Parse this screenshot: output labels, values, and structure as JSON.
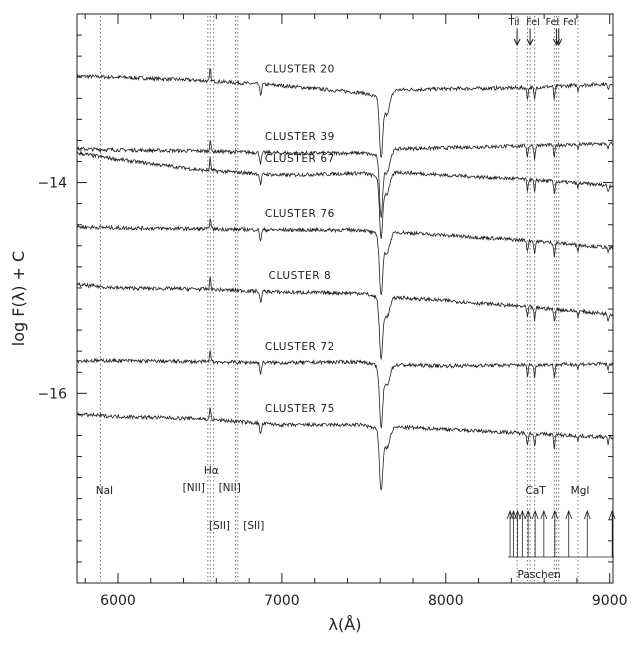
{
  "chart_data": {
    "type": "line",
    "xlabel": "λ(Å)",
    "ylabel": "log F(λ) + C",
    "xlim": [
      5750,
      9020
    ],
    "ylim": [
      -17.8,
      -12.4
    ],
    "xticks": [
      6000,
      7000,
      8000,
      9000
    ],
    "xtick_labels": [
      "6000",
      "7000",
      "8000",
      "9000"
    ],
    "yticks": [
      -14,
      -16
    ],
    "ytick_labels": [
      "−14",
      "−16"
    ],
    "grid": false,
    "legend": "none",
    "line_color": "#222222",
    "marker_line_color": "#777777",
    "series": [
      {
        "name": "CLUSTER 20",
        "points": [
          [
            5750,
            -12.99
          ],
          [
            6000,
            -13.0
          ],
          [
            6500,
            -13.03
          ],
          [
            7000,
            -13.08
          ],
          [
            7500,
            -13.15
          ],
          [
            7600,
            -13.2
          ],
          [
            7700,
            -13.12
          ],
          [
            8000,
            -13.11
          ],
          [
            8500,
            -13.1
          ],
          [
            9020,
            -13.06
          ]
        ]
      },
      {
        "name": "CLUSTER 39",
        "points": [
          [
            5750,
            -13.68
          ],
          [
            6000,
            -13.69
          ],
          [
            6500,
            -13.7
          ],
          [
            7000,
            -13.72
          ],
          [
            7500,
            -13.72
          ],
          [
            7600,
            -13.75
          ],
          [
            7700,
            -13.68
          ],
          [
            8000,
            -13.67
          ],
          [
            8500,
            -13.65
          ],
          [
            9020,
            -13.63
          ]
        ]
      },
      {
        "name": "CLUSTER 67",
        "points": [
          [
            5750,
            -13.72
          ],
          [
            6000,
            -13.78
          ],
          [
            6500,
            -13.88
          ],
          [
            7000,
            -13.93
          ],
          [
            7500,
            -13.91
          ],
          [
            7600,
            -13.95
          ],
          [
            7700,
            -13.9
          ],
          [
            8000,
            -13.93
          ],
          [
            8500,
            -13.97
          ],
          [
            9020,
            -14.03
          ]
        ]
      },
      {
        "name": "CLUSTER 76",
        "points": [
          [
            5750,
            -14.42
          ],
          [
            6000,
            -14.43
          ],
          [
            6500,
            -14.44
          ],
          [
            7000,
            -14.45
          ],
          [
            7500,
            -14.45
          ],
          [
            7600,
            -14.5
          ],
          [
            7700,
            -14.47
          ],
          [
            8000,
            -14.5
          ],
          [
            8500,
            -14.55
          ],
          [
            9020,
            -14.62
          ]
        ]
      },
      {
        "name": "CLUSTER 8",
        "points": [
          [
            5750,
            -14.97
          ],
          [
            6000,
            -15.0
          ],
          [
            6500,
            -15.01
          ],
          [
            7000,
            -15.04
          ],
          [
            7500,
            -15.05
          ],
          [
            7600,
            -15.1
          ],
          [
            7700,
            -15.09
          ],
          [
            8000,
            -15.12
          ],
          [
            8500,
            -15.18
          ],
          [
            9020,
            -15.25
          ]
        ]
      },
      {
        "name": "CLUSTER 72",
        "points": [
          [
            5750,
            -15.69
          ],
          [
            6000,
            -15.69
          ],
          [
            6500,
            -15.7
          ],
          [
            7000,
            -15.71
          ],
          [
            7500,
            -15.7
          ],
          [
            7600,
            -15.75
          ],
          [
            7700,
            -15.73
          ],
          [
            8000,
            -15.74
          ],
          [
            8500,
            -15.73
          ],
          [
            9020,
            -15.72
          ]
        ]
      },
      {
        "name": "CLUSTER 75",
        "points": [
          [
            5750,
            -16.2
          ],
          [
            6000,
            -16.22
          ],
          [
            6500,
            -16.24
          ],
          [
            7000,
            -16.3
          ],
          [
            7500,
            -16.3
          ],
          [
            7600,
            -16.35
          ],
          [
            7700,
            -16.32
          ],
          [
            8000,
            -16.34
          ],
          [
            8500,
            -16.38
          ],
          [
            9020,
            -16.42
          ]
        ]
      }
    ],
    "line_markers": [
      {
        "label": "NaI",
        "x": 5893
      },
      {
        "label": "Hα",
        "x": 6563
      },
      {
        "label": "[NII]",
        "x": 6548
      },
      {
        "label": "[NII]",
        "x": 6584
      },
      {
        "label": "[SII]",
        "x": 6717
      },
      {
        "label": "[SII]",
        "x": 6731
      },
      {
        "label": "CaT",
        "x": 8498
      },
      {
        "label": "CaT",
        "x": 8542
      },
      {
        "label": "CaT",
        "x": 8662
      },
      {
        "label": "MgI",
        "x": 8807
      }
    ],
    "top_markers": [
      {
        "label": "TiI",
        "x": 8435
      },
      {
        "label": "FeI",
        "x": 8514
      },
      {
        "label": "FeI",
        "x": 8675
      },
      {
        "label": "FeI",
        "x": 8689
      }
    ],
    "paschen": {
      "label": "Paschen",
      "x": [
        8392,
        8413,
        8438,
        8467,
        8502,
        8545,
        8598,
        8665,
        8750,
        8863,
        9015
      ]
    }
  }
}
